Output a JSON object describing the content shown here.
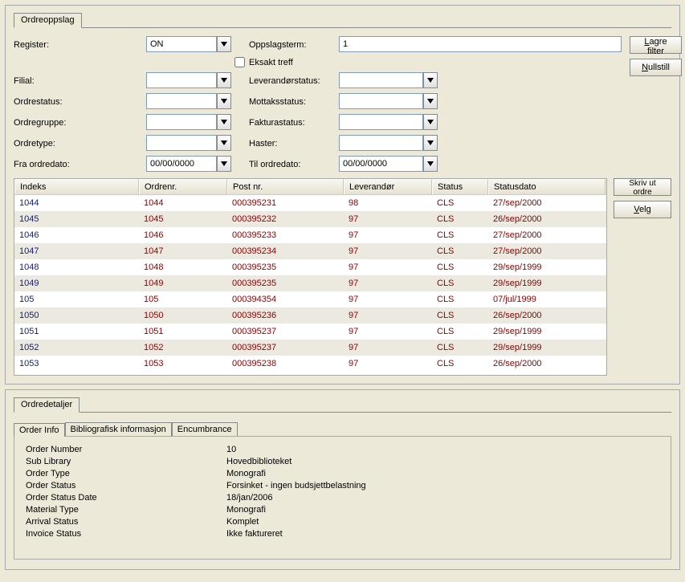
{
  "top_tab": "Ordreoppslag",
  "labels": {
    "register": "Register:",
    "oppslagsterm": "Oppslagsterm:",
    "eksakt_treff": "Eksakt treff",
    "filial": "Filial:",
    "leverandorstatus": "Leverandørstatus:",
    "ordrestatus": "Ordrestatus:",
    "mottaksstatus": "Mottaksstatus:",
    "ordregruppe": "Ordregruppe:",
    "fakturastatus": "Fakturastatus:",
    "ordretype": "Ordretype:",
    "haster": "Haster:",
    "fra_ordredato": "Fra ordredato:",
    "til_ordredato": "Til ordredato:"
  },
  "values": {
    "register": "ON",
    "oppslagsterm": "1",
    "filial": "",
    "leverandorstatus": "",
    "ordrestatus": "",
    "mottaksstatus": "",
    "ordregruppe": "",
    "fakturastatus": "",
    "ordretype": "",
    "haster": "",
    "fra_ordredato": "00/00/0000",
    "til_ordredato": "00/00/0000"
  },
  "buttons": {
    "lagre_filter": "Lagre filter",
    "nullstill": "Nullstill",
    "skriv_ut_ordre": "Skriv ut ordre",
    "velg": "Velg"
  },
  "columns": [
    "Indeks",
    "Ordrenr.",
    "Post nr.",
    "Leverandør",
    "Status",
    "Statusdato"
  ],
  "rows": [
    [
      "1044",
      "1044",
      "000395231",
      "98",
      "CLS",
      "27/sep/2000"
    ],
    [
      "1045",
      "1045",
      "000395232",
      "97",
      "CLS",
      "26/sep/2000"
    ],
    [
      "1046",
      "1046",
      "000395233",
      "97",
      "CLS",
      "27/sep/2000"
    ],
    [
      "1047",
      "1047",
      "000395234",
      "97",
      "CLS",
      "27/sep/2000"
    ],
    [
      "1048",
      "1048",
      "000395235",
      "97",
      "CLS",
      "29/sep/1999"
    ],
    [
      "1049",
      "1049",
      "000395235",
      "97",
      "CLS",
      "29/sep/1999"
    ],
    [
      "105",
      "105",
      "000394354",
      "97",
      "CLS",
      "07/jul/1999"
    ],
    [
      "1050",
      "1050",
      "000395236",
      "97",
      "CLS",
      "26/sep/2000"
    ],
    [
      "1051",
      "1051",
      "000395237",
      "97",
      "CLS",
      "29/sep/1999"
    ],
    [
      "1052",
      "1052",
      "000395237",
      "97",
      "CLS",
      "29/sep/1999"
    ],
    [
      "1053",
      "1053",
      "000395238",
      "97",
      "CLS",
      "26/sep/2000"
    ]
  ],
  "detail_tab": "Ordredetaljer",
  "inner_tabs": [
    "Order Info",
    "Bibliografisk informasjon",
    "Encumbrance"
  ],
  "detail": {
    "Order Number": "10",
    "Sub Library": "Hovedbiblioteket",
    "Order Type": "Monografi",
    "Order Status": "Forsinket - ingen budsjettbelastning",
    "Order Status Date": "18/jan/2006",
    "Material Type": "Monografi",
    "Arrival Status": "Komplet",
    "Invoice Status": "Ikke faktureret"
  }
}
